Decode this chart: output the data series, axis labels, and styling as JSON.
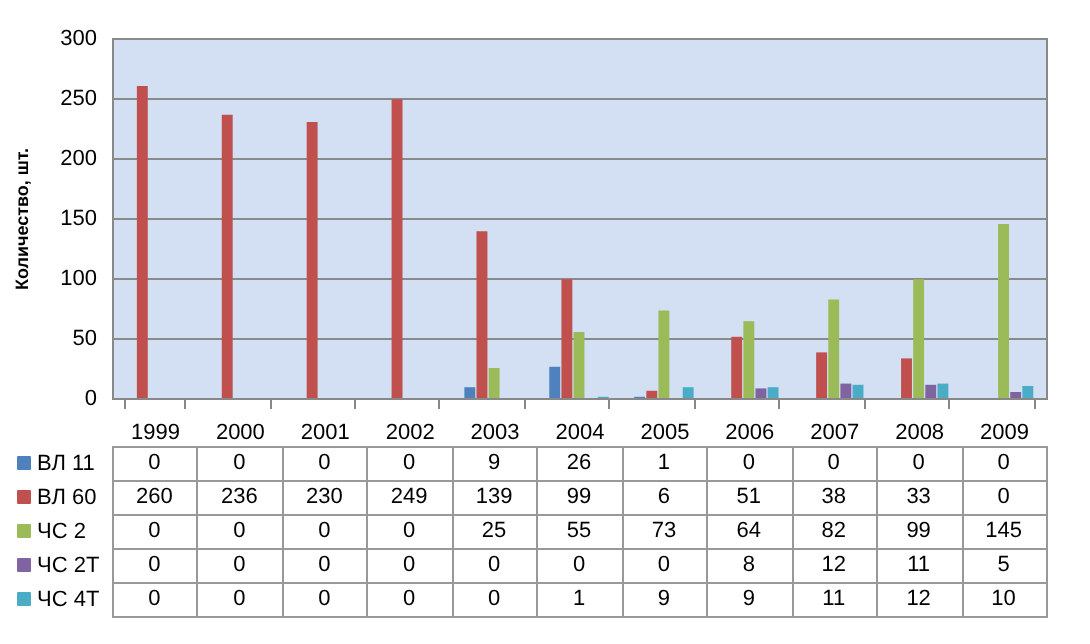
{
  "chart_data": {
    "type": "bar",
    "ylabel": "Количество, шт.",
    "categories": [
      "1999",
      "2000",
      "2001",
      "2002",
      "2003",
      "2004",
      "2005",
      "2006",
      "2007",
      "2008",
      "2009"
    ],
    "series": [
      {
        "name": "ВЛ 11",
        "color": "#4f81bd",
        "values": [
          0,
          0,
          0,
          0,
          9,
          26,
          1,
          0,
          0,
          0,
          0
        ]
      },
      {
        "name": "ВЛ 60",
        "color": "#c0504d",
        "values": [
          260,
          236,
          230,
          249,
          139,
          99,
          6,
          51,
          38,
          33,
          0
        ]
      },
      {
        "name": "ЧС 2",
        "color": "#9bbb59",
        "values": [
          0,
          0,
          0,
          0,
          25,
          55,
          73,
          64,
          82,
          99,
          145
        ]
      },
      {
        "name": "ЧС 2Т",
        "color": "#8064a2",
        "values": [
          0,
          0,
          0,
          0,
          0,
          0,
          0,
          8,
          12,
          11,
          5
        ]
      },
      {
        "name": "ЧС 4Т",
        "color": "#4bacc6",
        "values": [
          0,
          0,
          0,
          0,
          0,
          1,
          9,
          9,
          11,
          12,
          10
        ]
      }
    ],
    "ylim": [
      0,
      300
    ],
    "yticks": [
      0,
      50,
      100,
      150,
      200,
      250,
      300
    ],
    "grid": "y",
    "legend": "bottom",
    "data_labels": true
  }
}
